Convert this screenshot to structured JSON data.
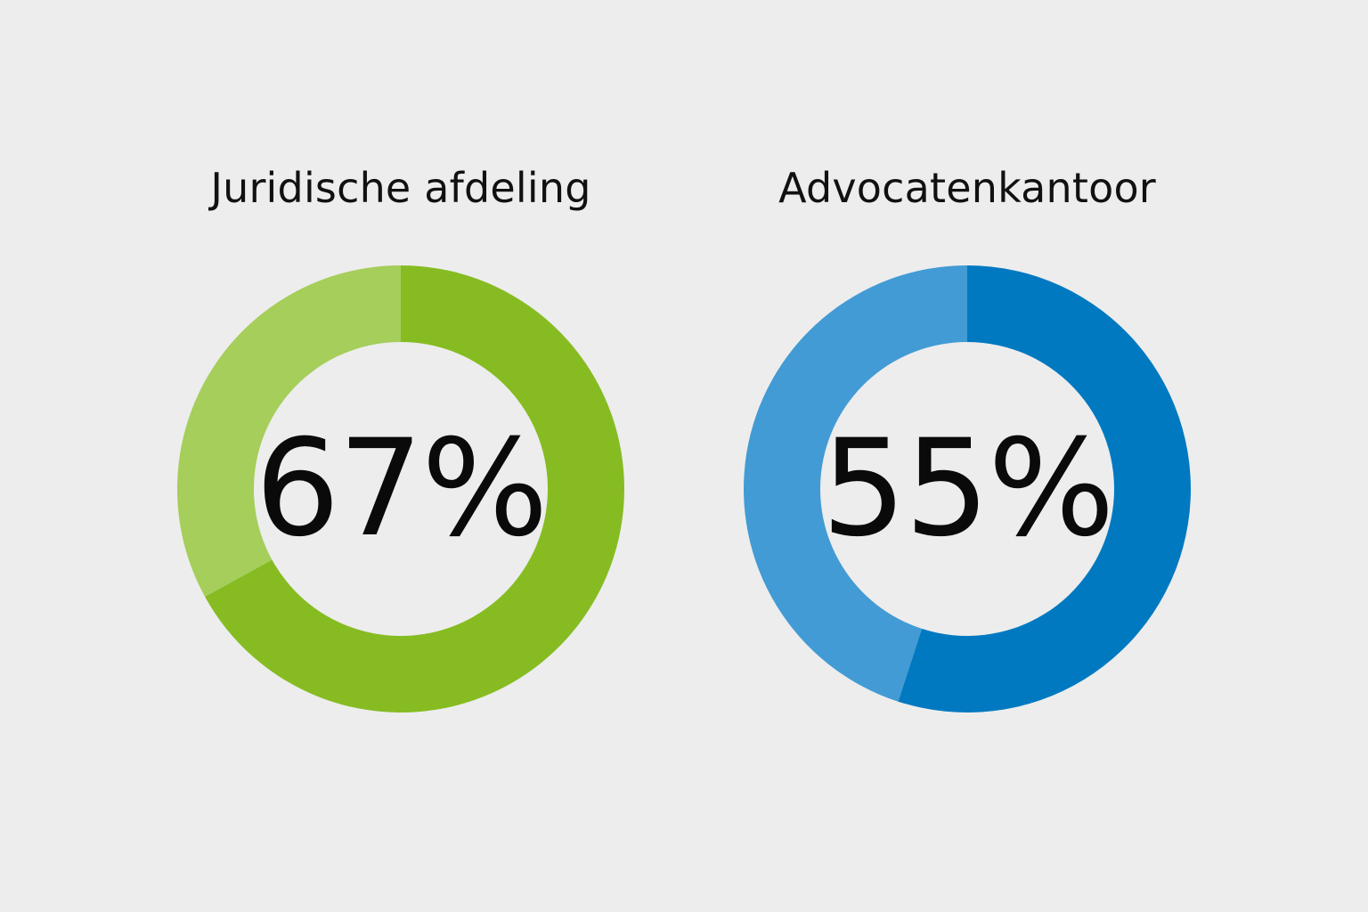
{
  "chart_data": [
    {
      "type": "pie",
      "title": "Juridische afdeling",
      "center_label": "67%",
      "values": [
        67,
        33
      ],
      "colors": [
        "#86bc22",
        "#a5ce5a"
      ]
    },
    {
      "type": "pie",
      "title": "Advocatenkantoor",
      "center_label": "55%",
      "values": [
        55,
        45
      ],
      "colors": [
        "#0079c1",
        "#429bd4"
      ]
    }
  ]
}
